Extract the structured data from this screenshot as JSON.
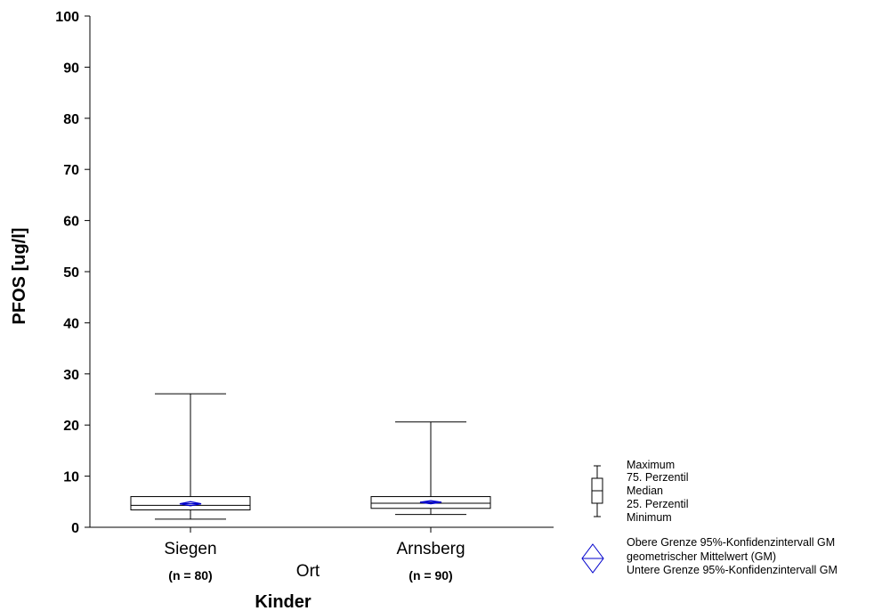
{
  "chart_data": {
    "type": "boxplot",
    "ylabel": "PFOS [ug/l]",
    "xlabel": "Ort",
    "group_label": "Kinder",
    "ylim": [
      0,
      100
    ],
    "yticks": [
      0,
      10,
      20,
      30,
      40,
      50,
      60,
      70,
      80,
      90,
      100
    ],
    "grid": false,
    "categories": [
      "Siegen",
      "Arnsberg"
    ],
    "n_labels": [
      "(n = 80)",
      "(n = 90)"
    ],
    "boxes": [
      {
        "category": "Siegen",
        "min": 1.6,
        "q1": 3.4,
        "median": 4.3,
        "q3": 6.0,
        "max": 26.1,
        "gm": 4.6,
        "gm_ci_lower": 4.2,
        "gm_ci_upper": 5.0
      },
      {
        "category": "Arnsberg",
        "min": 2.5,
        "q1": 3.7,
        "median": 4.7,
        "q3": 6.0,
        "max": 20.6,
        "gm": 4.9,
        "gm_ci_lower": 4.6,
        "gm_ci_upper": 5.2
      }
    ],
    "colors": {
      "box": "#000000",
      "gm_marker": "#0000cc"
    },
    "legend": {
      "placement": "bottom-right",
      "box_items": [
        "Maximum",
        "75. Perzentil",
        "Median",
        "25. Perzentil",
        "Minimum"
      ],
      "gm_items": [
        "Obere Grenze 95%-Konfidenzintervall GM",
        "geometrischer Mittelwert (GM)",
        "Untere Grenze 95%-Konfidenzintervall GM"
      ]
    }
  }
}
